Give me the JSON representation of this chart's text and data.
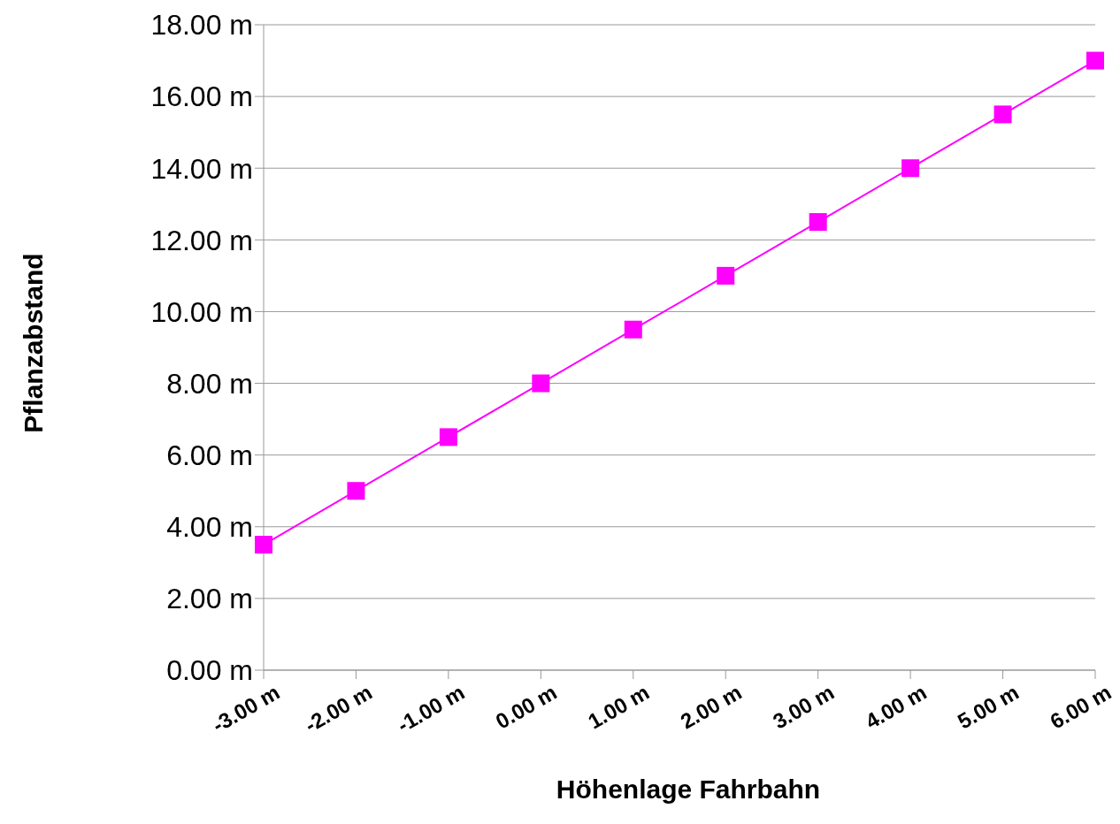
{
  "chart_data": {
    "type": "line",
    "xlabel": "Höhenlage Fahrbahn",
    "ylabel": "Pflanzabstand",
    "categories": [
      "-3.00 m",
      "-2.00 m",
      "-1.00 m",
      "0.00 m",
      "1.00 m",
      "2.00 m",
      "3.00 m",
      "4.00 m",
      "5.00 m",
      "6.00 m"
    ],
    "series": [
      {
        "color": "#ff00ff",
        "values": [
          3.5,
          5.0,
          6.5,
          8.0,
          9.5,
          11.0,
          12.5,
          14.0,
          15.5,
          17.0
        ]
      }
    ],
    "ylim": [
      0,
      18
    ],
    "yticks": [
      {
        "value": 0,
        "label": "0.00 m"
      },
      {
        "value": 2,
        "label": "2.00 m"
      },
      {
        "value": 4,
        "label": "4.00 m"
      },
      {
        "value": 6,
        "label": "6.00 m"
      },
      {
        "value": 8,
        "label": "8.00 m"
      },
      {
        "value": 10,
        "label": "10.00 m"
      },
      {
        "value": 12,
        "label": "12.00 m"
      },
      {
        "value": 14,
        "label": "14.00 m"
      },
      {
        "value": 16,
        "label": "16.00 m"
      },
      {
        "value": 18,
        "label": "18.00 m"
      }
    ],
    "grid": "y",
    "marker": "square",
    "line_style": "solid"
  }
}
